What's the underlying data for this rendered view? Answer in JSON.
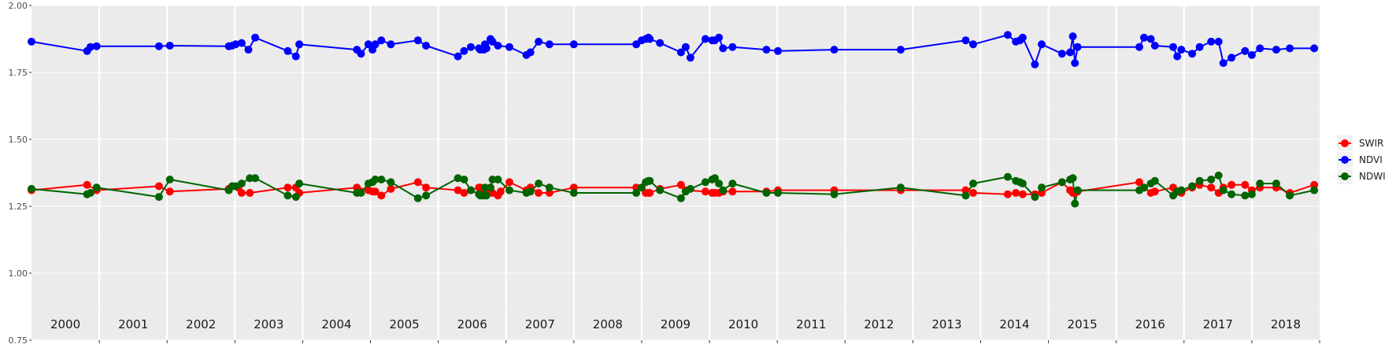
{
  "chart_data": {
    "type": "line",
    "title": "",
    "xlabel": "",
    "ylabel": "",
    "ylim": [
      0.75,
      2.0
    ],
    "y_ticks": [
      "0.75",
      "1.00",
      "1.25",
      "1.50",
      "1.75",
      "2.00"
    ],
    "x_range": [
      2000.0,
      2019.0
    ],
    "years": [
      "2000",
      "2001",
      "2002",
      "2003",
      "2004",
      "2005",
      "2006",
      "2007",
      "2008",
      "2009",
      "2010",
      "2011",
      "2012",
      "2013",
      "2014",
      "2015",
      "2016",
      "2017",
      "2018"
    ],
    "grid": true,
    "legend_position": "right",
    "series": [
      {
        "name": "SWIR",
        "color": "#ff0000",
        "x": [
          2000.0,
          2000.82,
          2000.96,
          2001.88,
          2002.04,
          2002.91,
          2003.05,
          2003.1,
          2003.22,
          2003.78,
          2003.9,
          2003.95,
          2004.8,
          2004.97,
          2005.03,
          2005.07,
          2005.16,
          2005.3,
          2005.7,
          2005.82,
          2006.29,
          2006.38,
          2006.48,
          2006.6,
          2006.62,
          2006.67,
          2006.69,
          2006.71,
          2006.77,
          2006.8,
          2006.88,
          2006.92,
          2007.05,
          2007.3,
          2007.36,
          2007.48,
          2007.64,
          2008.0,
          2008.92,
          2009.06,
          2009.1,
          2009.12,
          2009.27,
          2009.58,
          2009.65,
          2009.94,
          2010.04,
          2010.08,
          2010.14,
          2010.2,
          2010.34,
          2010.84,
          2011.01,
          2011.84,
          2012.82,
          2013.78,
          2013.89,
          2014.4,
          2014.52,
          2014.62,
          2014.8,
          2014.9,
          2015.2,
          2015.32,
          2015.36,
          2015.39,
          2015.43,
          2016.34,
          2016.41,
          2016.51,
          2016.57,
          2016.84,
          2016.9,
          2016.96,
          2017.12,
          2017.23,
          2017.4,
          2017.51,
          2017.58,
          2017.7,
          2017.9,
          2018.0,
          2018.12,
          2018.36,
          2018.56,
          2018.92
        ],
        "y": [
          1.31,
          1.33,
          1.31,
          1.325,
          1.305,
          1.315,
          1.32,
          1.3,
          1.3,
          1.32,
          1.32,
          1.3,
          1.32,
          1.31,
          1.305,
          1.305,
          1.29,
          1.315,
          1.34,
          1.32,
          1.31,
          1.3,
          1.31,
          1.32,
          1.32,
          1.3,
          1.31,
          1.305,
          1.32,
          1.3,
          1.29,
          1.305,
          1.34,
          1.31,
          1.32,
          1.3,
          1.3,
          1.32,
          1.32,
          1.3,
          1.3,
          1.3,
          1.315,
          1.33,
          1.31,
          1.305,
          1.3,
          1.3,
          1.3,
          1.305,
          1.305,
          1.305,
          1.31,
          1.31,
          1.31,
          1.31,
          1.3,
          1.295,
          1.3,
          1.295,
          1.295,
          1.3,
          1.34,
          1.31,
          1.3,
          1.3,
          1.305,
          1.34,
          1.32,
          1.3,
          1.305,
          1.32,
          1.305,
          1.3,
          1.32,
          1.33,
          1.32,
          1.3,
          1.32,
          1.33,
          1.33,
          1.31,
          1.32,
          1.32,
          1.3,
          1.33
        ]
      },
      {
        "name": "NDVI",
        "color": "#0000ff",
        "x": [
          2000.0,
          2000.82,
          2000.87,
          2000.96,
          2001.88,
          2002.04,
          2002.91,
          2002.96,
          2003.01,
          2003.1,
          2003.2,
          2003.3,
          2003.78,
          2003.9,
          2003.95,
          2004.8,
          2004.86,
          2004.97,
          2005.03,
          2005.07,
          2005.16,
          2005.3,
          2005.7,
          2005.82,
          2006.29,
          2006.38,
          2006.48,
          2006.6,
          2006.62,
          2006.67,
          2006.69,
          2006.71,
          2006.77,
          2006.8,
          2006.88,
          2007.05,
          2007.3,
          2007.36,
          2007.48,
          2007.64,
          2008.0,
          2008.92,
          2009.0,
          2009.06,
          2009.1,
          2009.12,
          2009.27,
          2009.58,
          2009.65,
          2009.72,
          2009.94,
          2010.04,
          2010.08,
          2010.14,
          2010.2,
          2010.34,
          2010.84,
          2011.01,
          2011.84,
          2012.82,
          2013.78,
          2013.89,
          2014.4,
          2014.52,
          2014.58,
          2014.62,
          2014.8,
          2014.9,
          2015.2,
          2015.32,
          2015.36,
          2015.39,
          2015.43,
          2016.34,
          2016.41,
          2016.51,
          2016.57,
          2016.84,
          2016.9,
          2016.96,
          2017.12,
          2017.23,
          2017.4,
          2017.51,
          2017.58,
          2017.7,
          2017.9,
          2018.0,
          2018.12,
          2018.36,
          2018.56,
          2018.92
        ],
        "y": [
          1.865,
          1.83,
          1.845,
          1.848,
          1.848,
          1.85,
          1.848,
          1.85,
          1.855,
          1.86,
          1.835,
          1.88,
          1.83,
          1.81,
          1.855,
          1.835,
          1.82,
          1.855,
          1.835,
          1.855,
          1.87,
          1.855,
          1.87,
          1.85,
          1.81,
          1.83,
          1.845,
          1.84,
          1.835,
          1.835,
          1.855,
          1.84,
          1.875,
          1.865,
          1.85,
          1.845,
          1.815,
          1.825,
          1.865,
          1.855,
          1.855,
          1.855,
          1.87,
          1.875,
          1.88,
          1.875,
          1.86,
          1.825,
          1.845,
          1.805,
          1.875,
          1.87,
          1.87,
          1.88,
          1.84,
          1.845,
          1.835,
          1.83,
          1.835,
          1.835,
          1.87,
          1.855,
          1.89,
          1.865,
          1.87,
          1.88,
          1.78,
          1.855,
          1.82,
          1.825,
          1.885,
          1.785,
          1.845,
          1.845,
          1.88,
          1.875,
          1.85,
          1.845,
          1.81,
          1.835,
          1.82,
          1.845,
          1.865,
          1.865,
          1.785,
          1.805,
          1.83,
          1.815,
          1.84,
          1.835,
          1.84,
          1.84
        ]
      },
      {
        "name": "NDWI",
        "color": "#006400",
        "x": [
          2000.0,
          2000.82,
          2000.87,
          2000.96,
          2001.88,
          2002.04,
          2002.91,
          2002.96,
          2003.01,
          2003.1,
          2003.22,
          2003.3,
          2003.78,
          2003.9,
          2003.95,
          2004.8,
          2004.86,
          2004.97,
          2005.03,
          2005.07,
          2005.16,
          2005.3,
          2005.7,
          2005.82,
          2006.29,
          2006.38,
          2006.48,
          2006.6,
          2006.62,
          2006.67,
          2006.69,
          2006.71,
          2006.77,
          2006.8,
          2006.88,
          2007.05,
          2007.3,
          2007.36,
          2007.48,
          2007.64,
          2008.0,
          2008.92,
          2009.0,
          2009.06,
          2009.1,
          2009.12,
          2009.27,
          2009.58,
          2009.65,
          2009.72,
          2009.94,
          2010.04,
          2010.08,
          2010.14,
          2010.2,
          2010.34,
          2010.84,
          2011.01,
          2011.84,
          2012.82,
          2013.78,
          2013.89,
          2014.4,
          2014.52,
          2014.58,
          2014.62,
          2014.8,
          2014.9,
          2015.2,
          2015.32,
          2015.36,
          2015.39,
          2015.43,
          2016.34,
          2016.41,
          2016.51,
          2016.57,
          2016.84,
          2016.9,
          2016.96,
          2017.12,
          2017.23,
          2017.4,
          2017.51,
          2017.58,
          2017.7,
          2017.9,
          2018.0,
          2018.12,
          2018.36,
          2018.56,
          2018.92
        ],
        "y": [
          1.315,
          1.295,
          1.3,
          1.32,
          1.285,
          1.35,
          1.31,
          1.325,
          1.325,
          1.335,
          1.355,
          1.355,
          1.29,
          1.285,
          1.335,
          1.3,
          1.3,
          1.335,
          1.34,
          1.35,
          1.35,
          1.34,
          1.28,
          1.29,
          1.355,
          1.35,
          1.31,
          1.295,
          1.29,
          1.29,
          1.32,
          1.29,
          1.32,
          1.35,
          1.35,
          1.31,
          1.3,
          1.305,
          1.335,
          1.32,
          1.3,
          1.3,
          1.32,
          1.34,
          1.345,
          1.345,
          1.31,
          1.28,
          1.305,
          1.315,
          1.34,
          1.35,
          1.355,
          1.335,
          1.31,
          1.335,
          1.3,
          1.3,
          1.295,
          1.32,
          1.29,
          1.335,
          1.36,
          1.345,
          1.34,
          1.335,
          1.285,
          1.32,
          1.34,
          1.35,
          1.355,
          1.26,
          1.31,
          1.31,
          1.32,
          1.335,
          1.345,
          1.29,
          1.305,
          1.31,
          1.325,
          1.345,
          1.35,
          1.365,
          1.31,
          1.295,
          1.29,
          1.295,
          1.335,
          1.335,
          1.29,
          1.31
        ]
      }
    ]
  }
}
